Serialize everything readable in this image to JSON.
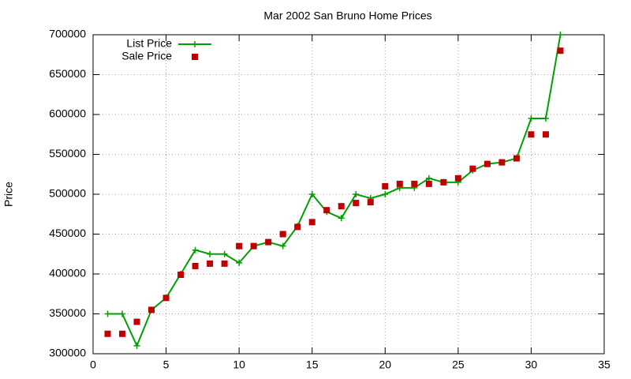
{
  "chart_data": {
    "type": "line",
    "title": "Mar 2002 San Bruno Home Prices",
    "y_label": "Price",
    "x": [
      1,
      2,
      3,
      4,
      5,
      6,
      7,
      8,
      9,
      10,
      11,
      12,
      13,
      14,
      15,
      16,
      17,
      18,
      19,
      20,
      21,
      22,
      23,
      24,
      25,
      26,
      27,
      28,
      29,
      30,
      31,
      32
    ],
    "series": [
      {
        "name": "List Price",
        "color": "#00a000",
        "style": "linespoints",
        "values": [
          350000,
          350000,
          310000,
          355000,
          370000,
          400000,
          430000,
          425000,
          425000,
          414000,
          435000,
          440000,
          435000,
          460000,
          500000,
          478000,
          470000,
          500000,
          495000,
          500000,
          508000,
          508000,
          520000,
          515000,
          515000,
          530000,
          538000,
          540000,
          545000,
          595000,
          595000,
          700000
        ]
      },
      {
        "name": "Sale Price",
        "color": "#c00000",
        "style": "points",
        "values": [
          325000,
          325000,
          340000,
          355000,
          370000,
          399000,
          410000,
          413000,
          413000,
          435000,
          435000,
          440000,
          450000,
          459000,
          465000,
          480000,
          485000,
          489000,
          490000,
          510000,
          513000,
          513000,
          513000,
          515000,
          520000,
          532000,
          538000,
          540000,
          545000,
          575000,
          575000,
          680000
        ]
      }
    ],
    "xlim": [
      0,
      35
    ],
    "xticks": [
      0,
      5,
      10,
      15,
      20,
      25,
      30,
      35
    ],
    "ylim": [
      300000,
      700000
    ],
    "yticks": [
      300000,
      350000,
      400000,
      450000,
      500000,
      550000,
      600000,
      650000,
      700000
    ],
    "grid": true,
    "legend": "top-left"
  }
}
